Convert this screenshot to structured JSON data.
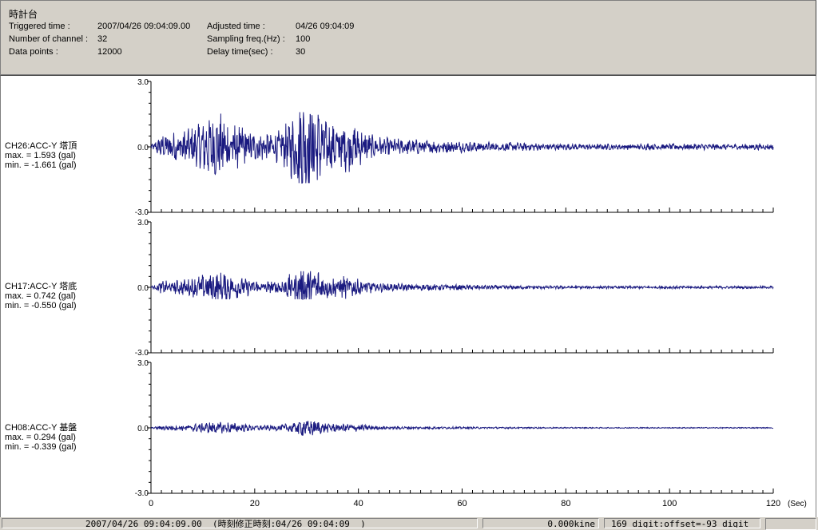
{
  "header": {
    "title": "時計台",
    "triggered_label": "Triggered time :",
    "triggered_value": "2007/04/26 09:04:09.00",
    "channels_label": "Number of channel :",
    "channels_value": "32",
    "points_label": "Data points :",
    "points_value": "12000",
    "adjusted_label": "Adjusted time :",
    "adjusted_value": "04/26 09:04:09",
    "sampling_label": "Sampling freq.(Hz) :",
    "sampling_value": "100",
    "delay_label": "Delay time(sec) :",
    "delay_value": "30"
  },
  "chart_data": {
    "type": "line",
    "x_unit": "(Sec)",
    "xlim": [
      0,
      120
    ],
    "x_ticks": [
      "0",
      "20",
      "40",
      "60",
      "80",
      "100",
      "120"
    ],
    "panels": [
      {
        "name": "CH26:ACC-Y 塔頂",
        "max_text": "max. = 1.593 (gal)",
        "min_text": "min. = -1.661 (gal)",
        "max": 1.593,
        "min": -1.661,
        "ylim": [
          -3.0,
          3.0
        ],
        "y_ticks": [
          "3.0",
          "0.0",
          "-3.0"
        ]
      },
      {
        "name": "CH17:ACC-Y 塔底",
        "max_text": "max. = 0.742 (gal)",
        "min_text": "min. = -0.550 (gal)",
        "max": 0.742,
        "min": -0.55,
        "ylim": [
          -3.0,
          3.0
        ],
        "y_ticks": [
          "3.0",
          "0.0",
          "-3.0"
        ]
      },
      {
        "name": "CH08:ACC-Y 基盤",
        "max_text": "max. = 0.294 (gal)",
        "min_text": "min. = -0.339 (gal)",
        "max": 0.294,
        "min": -0.339,
        "ylim": [
          -3.0,
          3.0
        ],
        "y_ticks": [
          "3.0",
          "0.0",
          "-3.0"
        ]
      }
    ],
    "line_color": "#1a1a80"
  },
  "status": {
    "time": "2007/04/26 09:04:09.00  (時刻修正時刻:04/26 09:04:09  )",
    "velocity": "0.000kine",
    "digit": "169 digit:offset=-93 digit"
  }
}
